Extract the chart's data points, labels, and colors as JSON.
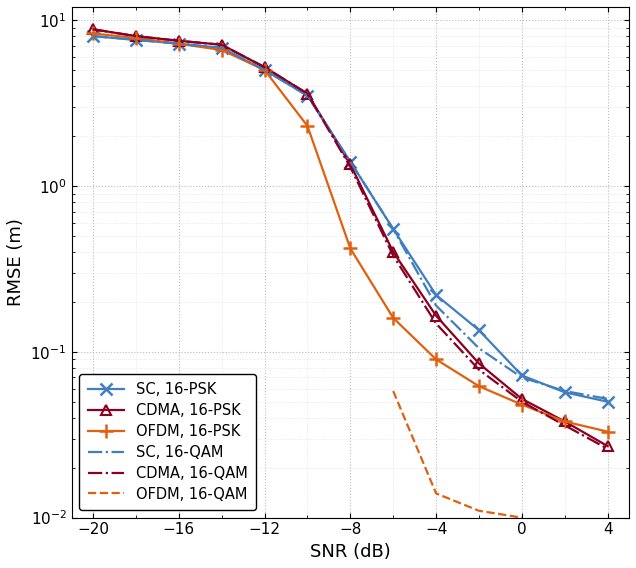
{
  "snr": [
    -20,
    -18,
    -16,
    -14,
    -12,
    -10,
    -8,
    -6,
    -4,
    -2,
    0,
    2,
    4
  ],
  "SC_PSK": [
    8.0,
    7.6,
    7.2,
    6.8,
    5.0,
    3.5,
    1.4,
    0.55,
    0.22,
    0.135,
    0.072,
    0.057,
    0.05
  ],
  "CDMA_PSK": [
    8.8,
    8.0,
    7.5,
    7.1,
    5.2,
    3.6,
    1.35,
    0.4,
    0.165,
    0.085,
    0.052,
    0.038,
    0.027
  ],
  "OFDM_PSK": [
    8.3,
    7.8,
    7.2,
    6.6,
    5.0,
    2.3,
    0.42,
    0.16,
    0.09,
    0.062,
    0.048,
    0.038,
    0.033
  ],
  "SC_QAM": [
    8.0,
    7.6,
    7.2,
    6.8,
    5.0,
    3.5,
    1.4,
    0.55,
    0.19,
    0.105,
    0.07,
    0.058,
    0.052
  ],
  "CDMA_QAM": [
    8.8,
    8.0,
    7.5,
    7.1,
    5.2,
    3.6,
    1.3,
    0.38,
    0.148,
    0.078,
    0.05,
    0.036,
    0.026
  ],
  "OFDM_QAM": [
    null,
    null,
    null,
    null,
    null,
    null,
    null,
    0.058,
    0.014,
    0.011,
    0.01,
    null,
    null
  ],
  "color_blue": "#3F7FBF",
  "color_darkred": "#8B0020",
  "color_orange": "#E06010",
  "xlabel": "SNR (dB)",
  "ylabel": "RMSE (m)",
  "legend_loc": "lower left"
}
